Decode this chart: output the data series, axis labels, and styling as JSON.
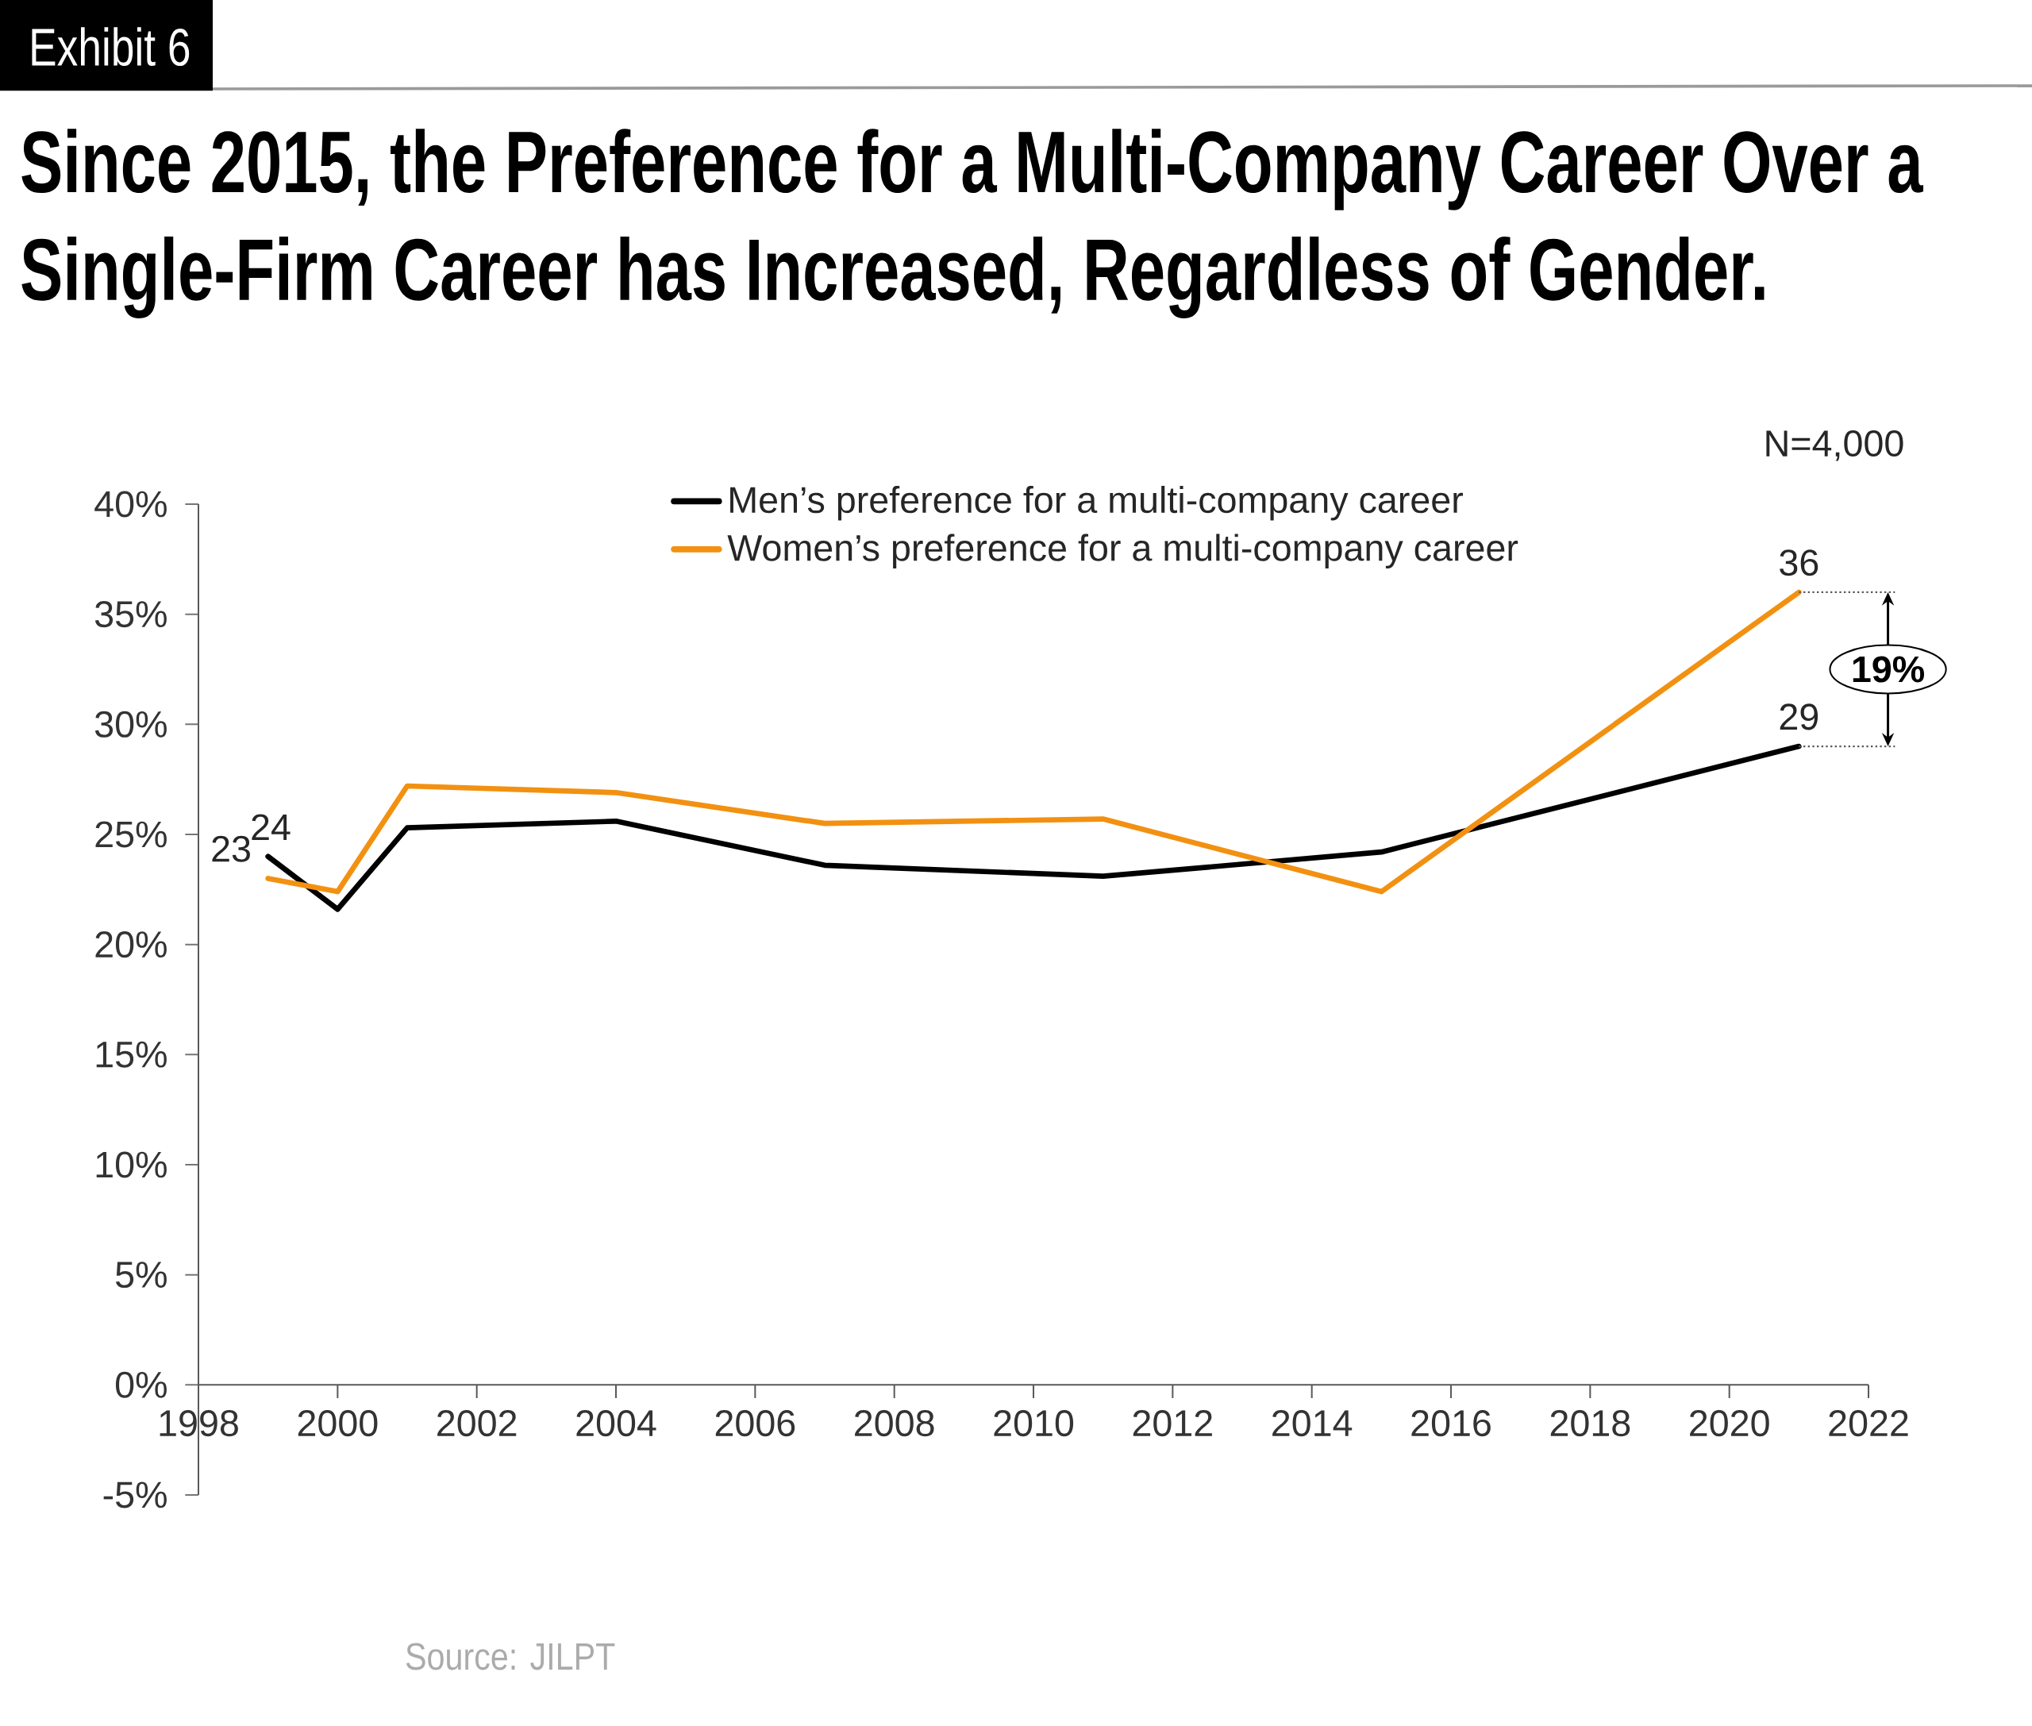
{
  "chart_data": {
    "type": "line",
    "title": "Since 2015, the Preference for a Multi-Company Career Over a Single-Firm Career has Increased, Regardless of Gender.",
    "annotations": [
      "Exhibit 6",
      "N=4,000",
      "19%",
      "Source: JILPT"
    ],
    "x": [
      1999,
      2000,
      2001,
      2004,
      2007,
      2011,
      2015,
      2021
    ],
    "series": [
      {
        "name": "Men’s preference for a multi-company career",
        "color": "#000000",
        "values": [
          24,
          21.6,
          25.3,
          25.6,
          23.6,
          23.1,
          24.2,
          29
        ],
        "value_labels": [
          "24",
          null,
          null,
          null,
          null,
          null,
          null,
          "29"
        ]
      },
      {
        "name": "Women’s preference for a multi-company career",
        "color": "#F29111",
        "values": [
          23,
          22.4,
          27.2,
          26.9,
          25.5,
          25.7,
          22.4,
          36
        ],
        "value_labels": [
          "23",
          null,
          null,
          null,
          null,
          null,
          null,
          "36"
        ]
      }
    ],
    "xlim": [
      1998,
      2022
    ],
    "xticks": [
      1998,
      2000,
      2002,
      2004,
      2006,
      2008,
      2010,
      2012,
      2014,
      2016,
      2018,
      2020,
      2022
    ],
    "ylim": [
      -5,
      40
    ],
    "yticks": [
      {
        "value": -5,
        "label": "-5%"
      },
      {
        "value": 0,
        "label": "0%"
      },
      {
        "value": 5,
        "label": "5%"
      },
      {
        "value": 10,
        "label": "10%"
      },
      {
        "value": 15,
        "label": "15%"
      },
      {
        "value": 20,
        "label": "20%"
      },
      {
        "value": 25,
        "label": "25%"
      },
      {
        "value": 30,
        "label": "30%"
      },
      {
        "value": 35,
        "label": "35%"
      },
      {
        "value": 40,
        "label": "40%"
      }
    ],
    "legend": "top"
  }
}
